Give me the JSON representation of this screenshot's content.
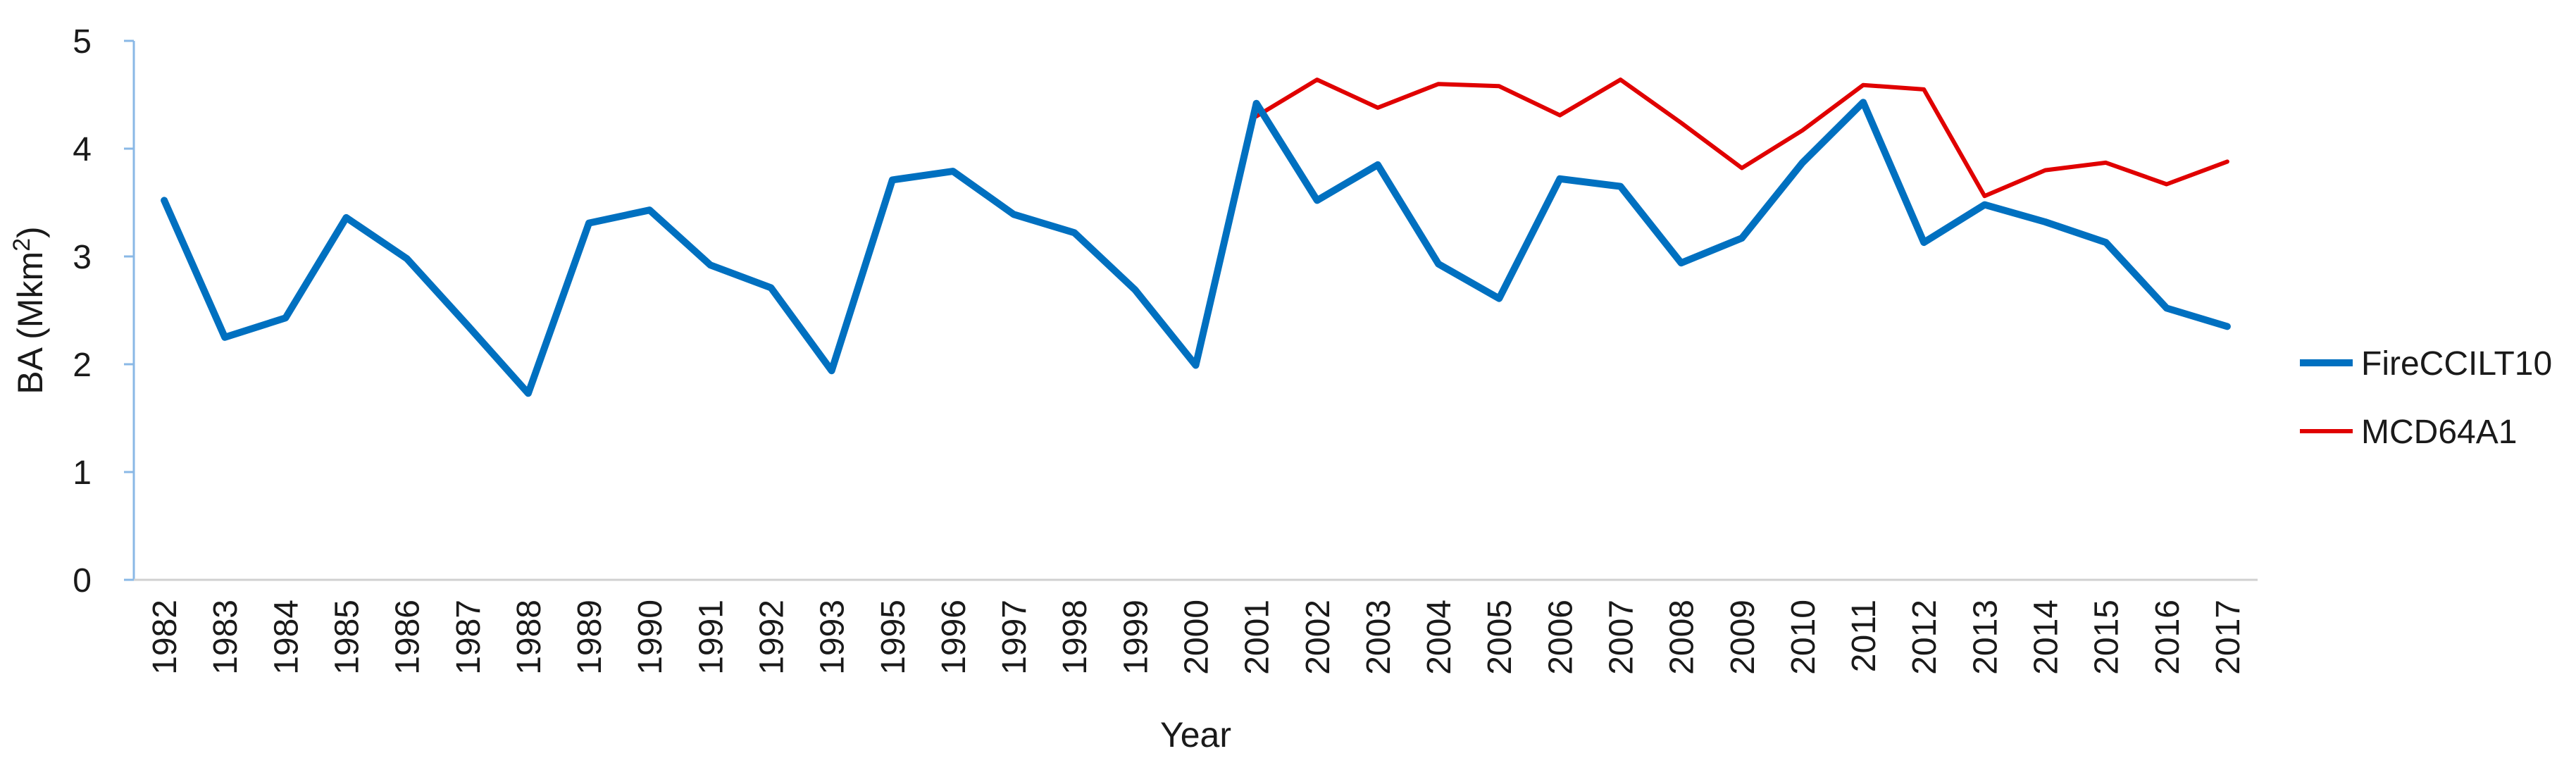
{
  "chart_data": {
    "type": "line",
    "title": "",
    "xlabel": "Year",
    "ylabel": "BA (Mkm",
    "ylabel_superscript": "2",
    "ylabel_suffix": ")",
    "ylim": [
      0,
      5
    ],
    "yticks": [
      0,
      1,
      2,
      3,
      4,
      5
    ],
    "grid": false,
    "legend_position": "right",
    "categories": [
      "1982",
      "1983",
      "1984",
      "1985",
      "1986",
      "1987",
      "1988",
      "1989",
      "1990",
      "1991",
      "1992",
      "1993",
      "1995",
      "1996",
      "1997",
      "1998",
      "1999",
      "2000",
      "2001",
      "2002",
      "2003",
      "2004",
      "2005",
      "2006",
      "2007",
      "2008",
      "2009",
      "2010",
      "2011",
      "2012",
      "2013",
      "2014",
      "2015",
      "2016",
      "2017"
    ],
    "series": [
      {
        "name": "FireCCILT10",
        "color": "#0070c0",
        "values": [
          3.52,
          2.25,
          2.43,
          3.36,
          2.98,
          2.36,
          1.73,
          3.31,
          3.43,
          2.92,
          2.71,
          1.94,
          3.71,
          3.79,
          3.39,
          3.22,
          2.69,
          1.99,
          4.42,
          3.52,
          3.85,
          2.93,
          2.61,
          3.72,
          3.65,
          2.94,
          3.17,
          3.87,
          4.43,
          3.13,
          3.48,
          3.32,
          3.13,
          2.52,
          2.35
        ]
      },
      {
        "name": "MCD64A1",
        "color": "#e00000",
        "values": [
          null,
          null,
          null,
          null,
          null,
          null,
          null,
          null,
          null,
          null,
          null,
          null,
          null,
          null,
          null,
          null,
          null,
          null,
          4.3,
          4.64,
          4.38,
          4.6,
          4.58,
          4.31,
          4.64,
          4.24,
          3.82,
          4.17,
          4.59,
          4.55,
          3.56,
          3.8,
          3.87,
          3.67,
          3.88
        ]
      }
    ]
  }
}
